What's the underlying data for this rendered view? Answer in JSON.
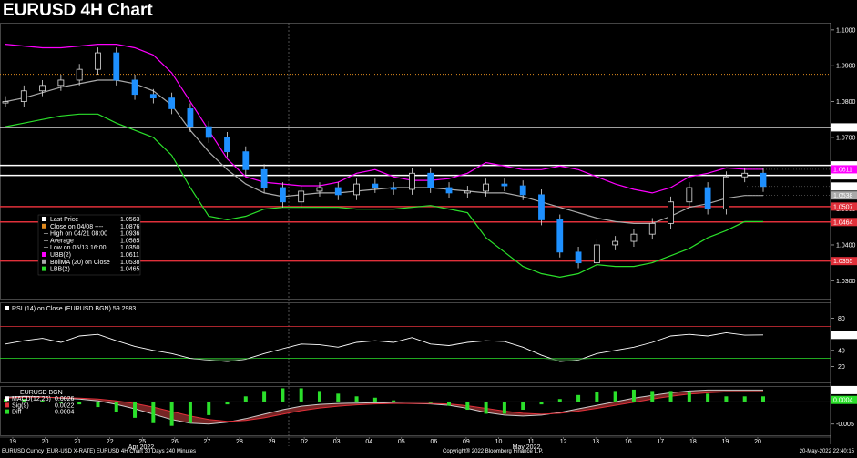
{
  "title": "EURUSD 4H Chart",
  "chart_data": [
    {
      "type": "line",
      "panel": "price",
      "instrument": "EURUSD",
      "ylim": [
        1.025,
        1.102
      ],
      "y_ticks": [
        "1.1000",
        "1.0900",
        "1.0800",
        "1.0700",
        "1.0600",
        "1.0500",
        "1.0400",
        "1.0300"
      ],
      "x_ticks": [
        "19",
        "20",
        "21",
        "22",
        "25",
        "26",
        "27",
        "28",
        "29",
        "02",
        "03",
        "04",
        "05",
        "06",
        "09",
        "10",
        "11",
        "12",
        "13",
        "16",
        "17",
        "18",
        "19",
        "20"
      ],
      "x_month_labels": [
        "Apr 2022",
        "May 2022"
      ],
      "hlines": [
        {
          "value": 1.0876,
          "color": "#e08a1e",
          "style": "dotted"
        },
        {
          "value": 1.0728,
          "color": "#ffffff",
          "label": "1.0728"
        },
        {
          "value": 1.0622,
          "color": "#ffffff",
          "label": "1.0622"
        },
        {
          "value": 1.0594,
          "color": "#ffffff",
          "label": "1.0594"
        },
        {
          "value": 1.0507,
          "color": "#e0303a",
          "label": "1.0507"
        },
        {
          "value": 1.0464,
          "color": "#e0303a",
          "label": "1.0464"
        },
        {
          "value": 1.0355,
          "color": "#e0303a",
          "label": "1.0355"
        }
      ],
      "price_labels": [
        {
          "value": 1.0611,
          "text": "1.0611",
          "color": "#ff00ff"
        },
        {
          "value": 1.0563,
          "text": "1.0563",
          "color": "#000000"
        },
        {
          "value": 1.0538,
          "text": "1.0538",
          "color": "#aaaaaa"
        }
      ],
      "legend": [
        {
          "marker": "#ffffff",
          "label": "Last Price",
          "value": "1.0563"
        },
        {
          "marker": "#e08a1e",
          "label": "Close on 04/08 ----",
          "value": "1.0876"
        },
        {
          "marker": "none",
          "label": "High on 04/21 08:00",
          "value": "1.0936"
        },
        {
          "marker": "none",
          "label": "Average",
          "value": "1.0585"
        },
        {
          "marker": "none",
          "label": "Low on 05/13 16:00",
          "value": "1.0350"
        },
        {
          "marker": "#ff00ff",
          "label": "UBB(2)",
          "value": "1.0611"
        },
        {
          "marker": "#aaaaaa",
          "label": "BollMA (20)  on Close",
          "value": "1.0538"
        },
        {
          "marker": "#2be02b",
          "label": "LBB(2)",
          "value": "1.0465"
        }
      ],
      "series": [
        {
          "name": "Last Price",
          "values": [
            1.08,
            1.083,
            1.0845,
            1.086,
            1.089,
            1.0936,
            1.086,
            1.082,
            1.081,
            1.078,
            1.073,
            1.07,
            1.066,
            1.061,
            1.056,
            1.052,
            1.055,
            1.056,
            1.054,
            1.057,
            1.056,
            1.0555,
            1.06,
            1.056,
            1.0545,
            1.055,
            1.057,
            1.0565,
            1.054,
            1.047,
            1.038,
            1.035,
            1.04,
            1.041,
            1.043,
            1.046,
            1.052,
            1.056,
            1.05,
            1.059,
            1.06,
            1.0563
          ]
        },
        {
          "name": "UBB(2)",
          "values": [
            1.096,
            1.0955,
            1.095,
            1.095,
            1.0955,
            1.096,
            1.096,
            1.095,
            1.093,
            1.088,
            1.08,
            1.072,
            1.064,
            1.059,
            1.0575,
            1.057,
            1.0565,
            1.0565,
            1.0575,
            1.06,
            1.061,
            1.059,
            1.058,
            1.058,
            1.0585,
            1.06,
            1.063,
            1.062,
            1.061,
            1.061,
            1.062,
            1.061,
            1.059,
            1.057,
            1.0555,
            1.0545,
            1.056,
            1.059,
            1.06,
            1.0615,
            1.0611,
            1.0611
          ]
        },
        {
          "name": "BollMA (20)",
          "values": [
            1.08,
            1.081,
            1.0825,
            1.084,
            1.085,
            1.086,
            1.086,
            1.085,
            1.083,
            1.079,
            1.072,
            1.066,
            1.061,
            1.057,
            1.0545,
            1.0535,
            1.054,
            1.0545,
            1.0545,
            1.055,
            1.0555,
            1.056,
            1.056,
            1.056,
            1.0555,
            1.055,
            1.0545,
            1.0545,
            1.0535,
            1.052,
            1.0505,
            1.049,
            1.0475,
            1.0465,
            1.046,
            1.046,
            1.048,
            1.0505,
            1.0515,
            1.053,
            1.0538,
            1.0538
          ]
        },
        {
          "name": "LBB(2)",
          "values": [
            1.073,
            1.074,
            1.075,
            1.076,
            1.0765,
            1.0765,
            1.074,
            1.072,
            1.07,
            1.065,
            1.056,
            1.048,
            1.047,
            1.048,
            1.05,
            1.0505,
            1.0505,
            1.0505,
            1.0505,
            1.05,
            1.05,
            1.05,
            1.0505,
            1.051,
            1.05,
            1.049,
            1.042,
            1.038,
            1.034,
            1.032,
            1.031,
            1.032,
            1.0345,
            1.034,
            1.034,
            1.035,
            1.037,
            1.039,
            1.042,
            1.044,
            1.0465,
            1.0465
          ]
        }
      ]
    },
    {
      "type": "line",
      "panel": "rsi",
      "legend": "RSI (14)   on Close (EURUSD BGN)  59.2983",
      "ylim": [
        0,
        100
      ],
      "y_ticks": [
        "80",
        "60",
        "40",
        "20"
      ],
      "hlines": [
        {
          "value": 70,
          "color": "#e0303a"
        },
        {
          "value": 30,
          "color": "#2be02b"
        }
      ],
      "price_label": "59.2983",
      "series": [
        {
          "name": "RSI (14)",
          "values": [
            48,
            52,
            55,
            50,
            58,
            60,
            52,
            45,
            40,
            36,
            30,
            28,
            26,
            29,
            36,
            42,
            48,
            47,
            44,
            50,
            52,
            50,
            56,
            48,
            46,
            50,
            52,
            51,
            44,
            34,
            26,
            28,
            36,
            40,
            44,
            50,
            58,
            60,
            58,
            62,
            59,
            59.2983
          ]
        }
      ]
    },
    {
      "type": "area",
      "panel": "macd",
      "legend": [
        {
          "marker": "#ffffff",
          "label": "EURUSD BGN",
          "value": ""
        },
        {
          "marker": "#ffffff",
          "label": "MACD(12,26)",
          "value": "0.0026"
        },
        {
          "marker": "#e0303a",
          "label": "Sig(9)",
          "value": "0.0022"
        },
        {
          "marker": "#2be02b",
          "label": "Diff",
          "value": "0.0004"
        }
      ],
      "ylim": [
        -0.0075,
        0.0035
      ],
      "y_ticks": [
        "-0.005"
      ],
      "price_labels": [
        {
          "value": 0.0026,
          "text": "0.0026",
          "color": "#000000"
        },
        {
          "value": 0.0004,
          "text": "0.0004",
          "color": "#2be02b"
        }
      ],
      "series": [
        {
          "name": "MACD(12,26)",
          "values": [
            0.001,
            0.0012,
            0.0011,
            0.0008,
            0.0006,
            0.0002,
            -0.0006,
            -0.0016,
            -0.0028,
            -0.004,
            -0.0048,
            -0.005,
            -0.0046,
            -0.0038,
            -0.0028,
            -0.0018,
            -0.001,
            -0.0006,
            -0.0004,
            -0.0003,
            -0.0002,
            -0.0003,
            -0.0004,
            -0.0005,
            -0.0008,
            -0.0015,
            -0.0024,
            -0.003,
            -0.0032,
            -0.003,
            -0.0024,
            -0.0016,
            -0.0008,
            0.0,
            0.0008,
            0.0014,
            0.002,
            0.0024,
            0.0026,
            0.0026,
            0.0026,
            0.0026
          ]
        },
        {
          "name": "Sig(9)",
          "values": [
            0.0008,
            0.001,
            0.001,
            0.0009,
            0.0008,
            0.0006,
            0.0002,
            -0.0004,
            -0.0012,
            -0.0022,
            -0.0032,
            -0.004,
            -0.0044,
            -0.0042,
            -0.0036,
            -0.0028,
            -0.002,
            -0.0014,
            -0.001,
            -0.0007,
            -0.0005,
            -0.0004,
            -0.0004,
            -0.0004,
            -0.0005,
            -0.0009,
            -0.0015,
            -0.0021,
            -0.0026,
            -0.0028,
            -0.0026,
            -0.0021,
            -0.0015,
            -0.0008,
            -0.0001,
            0.0006,
            0.0012,
            0.0017,
            0.002,
            0.0022,
            0.0022,
            0.0022
          ]
        }
      ]
    }
  ],
  "footer": {
    "left": "EURUSD Curncy (EUR-USD X-RATE) EURUSD 4H Chart 30 Days 240 Minutes",
    "center": "Copyright® 2022 Bloomberg Finance L.P.",
    "right": "20-May-2022 22:40:15"
  },
  "colors": {
    "upper_band": "#ff00ff",
    "middle_band": "#aaaaaa",
    "lower_band": "#2be02b",
    "candle": "#1e90ff",
    "resistance": "#ffffff",
    "support": "#e0303a",
    "close_line": "#e08a1e"
  }
}
